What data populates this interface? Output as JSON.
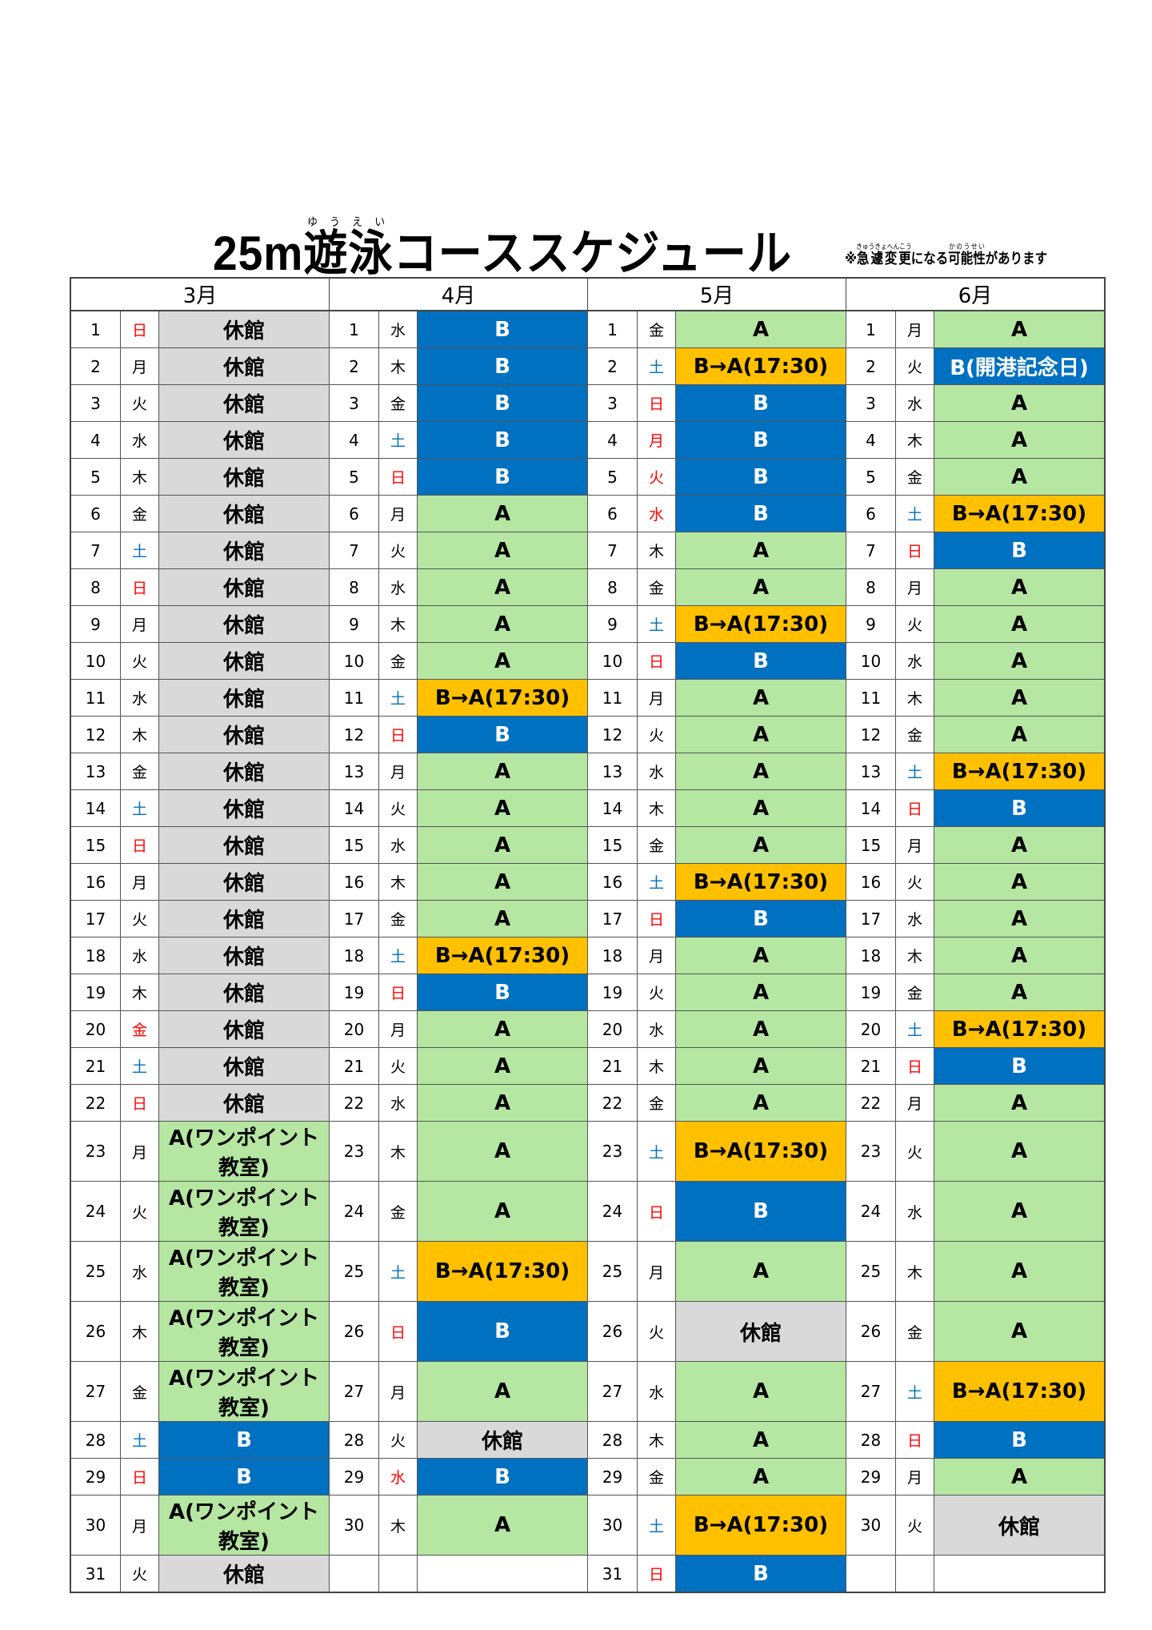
{
  "title": {
    "prefix": "25m",
    "ruby_base": "遊泳",
    "ruby_text": "ゆうえい",
    "suffix": "コーススケジュール"
  },
  "note": {
    "mark": "※",
    "r1_base": "急遽変更",
    "r1_text": "きゅうきょへんこう",
    "mid": "になる",
    "r2_base": "可能性",
    "r2_text": "かのうせい",
    "tail": "があります"
  },
  "colors": {
    "B": "#0070c0",
    "A": "#b5e6a2",
    "B_to_A": "#ffc000",
    "closed": "#d9d9d9",
    "sunday_holiday": "#ff0000",
    "saturday": "#0070c0"
  },
  "months": [
    {
      "label": "3月",
      "days": [
        {
          "d": "1",
          "w": "日",
          "v": "休館",
          "t": "X",
          "c": "red"
        },
        {
          "d": "2",
          "w": "月",
          "v": "休館",
          "t": "X",
          "c": ""
        },
        {
          "d": "3",
          "w": "火",
          "v": "休館",
          "t": "X",
          "c": ""
        },
        {
          "d": "4",
          "w": "水",
          "v": "休館",
          "t": "X",
          "c": ""
        },
        {
          "d": "5",
          "w": "木",
          "v": "休館",
          "t": "X",
          "c": ""
        },
        {
          "d": "6",
          "w": "金",
          "v": "休館",
          "t": "X",
          "c": ""
        },
        {
          "d": "7",
          "w": "土",
          "v": "休館",
          "t": "X",
          "c": "blue"
        },
        {
          "d": "8",
          "w": "日",
          "v": "休館",
          "t": "X",
          "c": "red"
        },
        {
          "d": "9",
          "w": "月",
          "v": "休館",
          "t": "X",
          "c": ""
        },
        {
          "d": "10",
          "w": "火",
          "v": "休館",
          "t": "X",
          "c": ""
        },
        {
          "d": "11",
          "w": "水",
          "v": "休館",
          "t": "X",
          "c": ""
        },
        {
          "d": "12",
          "w": "木",
          "v": "休館",
          "t": "X",
          "c": ""
        },
        {
          "d": "13",
          "w": "金",
          "v": "休館",
          "t": "X",
          "c": ""
        },
        {
          "d": "14",
          "w": "土",
          "v": "休館",
          "t": "X",
          "c": "blue"
        },
        {
          "d": "15",
          "w": "日",
          "v": "休館",
          "t": "X",
          "c": "red"
        },
        {
          "d": "16",
          "w": "月",
          "v": "休館",
          "t": "X",
          "c": ""
        },
        {
          "d": "17",
          "w": "火",
          "v": "休館",
          "t": "X",
          "c": ""
        },
        {
          "d": "18",
          "w": "水",
          "v": "休館",
          "t": "X",
          "c": ""
        },
        {
          "d": "19",
          "w": "木",
          "v": "休館",
          "t": "X",
          "c": ""
        },
        {
          "d": "20",
          "w": "金",
          "v": "休館",
          "t": "X",
          "c": "red"
        },
        {
          "d": "21",
          "w": "土",
          "v": "休館",
          "t": "X",
          "c": "blue"
        },
        {
          "d": "22",
          "w": "日",
          "v": "休館",
          "t": "X",
          "c": "red"
        },
        {
          "d": "23",
          "w": "月",
          "v": "A(ワンポイント教室)",
          "t": "AW",
          "c": ""
        },
        {
          "d": "24",
          "w": "火",
          "v": "A(ワンポイント教室)",
          "t": "AW",
          "c": ""
        },
        {
          "d": "25",
          "w": "水",
          "v": "A(ワンポイント教室)",
          "t": "AW",
          "c": ""
        },
        {
          "d": "26",
          "w": "木",
          "v": "A(ワンポイント教室)",
          "t": "AW",
          "c": ""
        },
        {
          "d": "27",
          "w": "金",
          "v": "A(ワンポイント教室)",
          "t": "AW",
          "c": ""
        },
        {
          "d": "28",
          "w": "土",
          "v": "B",
          "t": "B",
          "c": "blue"
        },
        {
          "d": "29",
          "w": "日",
          "v": "B",
          "t": "B",
          "c": "red"
        },
        {
          "d": "30",
          "w": "月",
          "v": "A(ワンポイント教室)",
          "t": "AW",
          "c": ""
        },
        {
          "d": "31",
          "w": "火",
          "v": "休館",
          "t": "X",
          "c": ""
        }
      ]
    },
    {
      "label": "4月",
      "days": [
        {
          "d": "1",
          "w": "水",
          "v": "B",
          "t": "B",
          "c": ""
        },
        {
          "d": "2",
          "w": "木",
          "v": "B",
          "t": "B",
          "c": ""
        },
        {
          "d": "3",
          "w": "金",
          "v": "B",
          "t": "B",
          "c": ""
        },
        {
          "d": "4",
          "w": "土",
          "v": "B",
          "t": "B",
          "c": "blue"
        },
        {
          "d": "5",
          "w": "日",
          "v": "B",
          "t": "B",
          "c": "red"
        },
        {
          "d": "6",
          "w": "月",
          "v": "A",
          "t": "A",
          "c": ""
        },
        {
          "d": "7",
          "w": "火",
          "v": "A",
          "t": "A",
          "c": ""
        },
        {
          "d": "8",
          "w": "水",
          "v": "A",
          "t": "A",
          "c": ""
        },
        {
          "d": "9",
          "w": "木",
          "v": "A",
          "t": "A",
          "c": ""
        },
        {
          "d": "10",
          "w": "金",
          "v": "A",
          "t": "A",
          "c": ""
        },
        {
          "d": "11",
          "w": "土",
          "v": "B→A(17:30)",
          "t": "BA",
          "c": "blue"
        },
        {
          "d": "12",
          "w": "日",
          "v": "B",
          "t": "B",
          "c": "red"
        },
        {
          "d": "13",
          "w": "月",
          "v": "A",
          "t": "A",
          "c": ""
        },
        {
          "d": "14",
          "w": "火",
          "v": "A",
          "t": "A",
          "c": ""
        },
        {
          "d": "15",
          "w": "水",
          "v": "A",
          "t": "A",
          "c": ""
        },
        {
          "d": "16",
          "w": "木",
          "v": "A",
          "t": "A",
          "c": ""
        },
        {
          "d": "17",
          "w": "金",
          "v": "A",
          "t": "A",
          "c": ""
        },
        {
          "d": "18",
          "w": "土",
          "v": "B→A(17:30)",
          "t": "BA",
          "c": "blue"
        },
        {
          "d": "19",
          "w": "日",
          "v": "B",
          "t": "B",
          "c": "red"
        },
        {
          "d": "20",
          "w": "月",
          "v": "A",
          "t": "A",
          "c": ""
        },
        {
          "d": "21",
          "w": "火",
          "v": "A",
          "t": "A",
          "c": ""
        },
        {
          "d": "22",
          "w": "水",
          "v": "A",
          "t": "A",
          "c": ""
        },
        {
          "d": "23",
          "w": "木",
          "v": "A",
          "t": "A",
          "c": ""
        },
        {
          "d": "24",
          "w": "金",
          "v": "A",
          "t": "A",
          "c": ""
        },
        {
          "d": "25",
          "w": "土",
          "v": "B→A(17:30)",
          "t": "BA",
          "c": "blue"
        },
        {
          "d": "26",
          "w": "日",
          "v": "B",
          "t": "B",
          "c": "red"
        },
        {
          "d": "27",
          "w": "月",
          "v": "A",
          "t": "A",
          "c": ""
        },
        {
          "d": "28",
          "w": "火",
          "v": "休館",
          "t": "X",
          "c": ""
        },
        {
          "d": "29",
          "w": "水",
          "v": "B",
          "t": "B",
          "c": "red"
        },
        {
          "d": "30",
          "w": "木",
          "v": "A",
          "t": "A",
          "c": ""
        },
        {
          "d": "",
          "w": "",
          "v": "",
          "t": "E",
          "c": ""
        }
      ]
    },
    {
      "label": "5月",
      "days": [
        {
          "d": "1",
          "w": "金",
          "v": "A",
          "t": "A",
          "c": ""
        },
        {
          "d": "2",
          "w": "土",
          "v": "B→A(17:30)",
          "t": "BA",
          "c": "blue"
        },
        {
          "d": "3",
          "w": "日",
          "v": "B",
          "t": "B",
          "c": "red"
        },
        {
          "d": "4",
          "w": "月",
          "v": "B",
          "t": "B",
          "c": "red"
        },
        {
          "d": "5",
          "w": "火",
          "v": "B",
          "t": "B",
          "c": "red"
        },
        {
          "d": "6",
          "w": "水",
          "v": "B",
          "t": "B",
          "c": "red"
        },
        {
          "d": "7",
          "w": "木",
          "v": "A",
          "t": "A",
          "c": ""
        },
        {
          "d": "8",
          "w": "金",
          "v": "A",
          "t": "A",
          "c": ""
        },
        {
          "d": "9",
          "w": "土",
          "v": "B→A(17:30)",
          "t": "BA",
          "c": "blue"
        },
        {
          "d": "10",
          "w": "日",
          "v": "B",
          "t": "B",
          "c": "red"
        },
        {
          "d": "11",
          "w": "月",
          "v": "A",
          "t": "A",
          "c": ""
        },
        {
          "d": "12",
          "w": "火",
          "v": "A",
          "t": "A",
          "c": ""
        },
        {
          "d": "13",
          "w": "水",
          "v": "A",
          "t": "A",
          "c": ""
        },
        {
          "d": "14",
          "w": "木",
          "v": "A",
          "t": "A",
          "c": ""
        },
        {
          "d": "15",
          "w": "金",
          "v": "A",
          "t": "A",
          "c": ""
        },
        {
          "d": "16",
          "w": "土",
          "v": "B→A(17:30)",
          "t": "BA",
          "c": "blue"
        },
        {
          "d": "17",
          "w": "日",
          "v": "B",
          "t": "B",
          "c": "red"
        },
        {
          "d": "18",
          "w": "月",
          "v": "A",
          "t": "A",
          "c": ""
        },
        {
          "d": "19",
          "w": "火",
          "v": "A",
          "t": "A",
          "c": ""
        },
        {
          "d": "20",
          "w": "水",
          "v": "A",
          "t": "A",
          "c": ""
        },
        {
          "d": "21",
          "w": "木",
          "v": "A",
          "t": "A",
          "c": ""
        },
        {
          "d": "22",
          "w": "金",
          "v": "A",
          "t": "A",
          "c": ""
        },
        {
          "d": "23",
          "w": "土",
          "v": "B→A(17:30)",
          "t": "BA",
          "c": "blue"
        },
        {
          "d": "24",
          "w": "日",
          "v": "B",
          "t": "B",
          "c": "red"
        },
        {
          "d": "25",
          "w": "月",
          "v": "A",
          "t": "A",
          "c": ""
        },
        {
          "d": "26",
          "w": "火",
          "v": "休館",
          "t": "X",
          "c": ""
        },
        {
          "d": "27",
          "w": "水",
          "v": "A",
          "t": "A",
          "c": ""
        },
        {
          "d": "28",
          "w": "木",
          "v": "A",
          "t": "A",
          "c": ""
        },
        {
          "d": "29",
          "w": "金",
          "v": "A",
          "t": "A",
          "c": ""
        },
        {
          "d": "30",
          "w": "土",
          "v": "B→A(17:30)",
          "t": "BA",
          "c": "blue"
        },
        {
          "d": "31",
          "w": "日",
          "v": "B",
          "t": "B",
          "c": "red"
        }
      ]
    },
    {
      "label": "6月",
      "days": [
        {
          "d": "1",
          "w": "月",
          "v": "A",
          "t": "A",
          "c": ""
        },
        {
          "d": "2",
          "w": "火",
          "v": "B(開港記念日)",
          "t": "BH",
          "c": ""
        },
        {
          "d": "3",
          "w": "水",
          "v": "A",
          "t": "A",
          "c": ""
        },
        {
          "d": "4",
          "w": "木",
          "v": "A",
          "t": "A",
          "c": ""
        },
        {
          "d": "5",
          "w": "金",
          "v": "A",
          "t": "A",
          "c": ""
        },
        {
          "d": "6",
          "w": "土",
          "v": "B→A(17:30)",
          "t": "BA",
          "c": "blue"
        },
        {
          "d": "7",
          "w": "日",
          "v": "B",
          "t": "B",
          "c": "red"
        },
        {
          "d": "8",
          "w": "月",
          "v": "A",
          "t": "A",
          "c": ""
        },
        {
          "d": "9",
          "w": "火",
          "v": "A",
          "t": "A",
          "c": ""
        },
        {
          "d": "10",
          "w": "水",
          "v": "A",
          "t": "A",
          "c": ""
        },
        {
          "d": "11",
          "w": "木",
          "v": "A",
          "t": "A",
          "c": ""
        },
        {
          "d": "12",
          "w": "金",
          "v": "A",
          "t": "A",
          "c": ""
        },
        {
          "d": "13",
          "w": "土",
          "v": "B→A(17:30)",
          "t": "BA",
          "c": "blue"
        },
        {
          "d": "14",
          "w": "日",
          "v": "B",
          "t": "B",
          "c": "red"
        },
        {
          "d": "15",
          "w": "月",
          "v": "A",
          "t": "A",
          "c": ""
        },
        {
          "d": "16",
          "w": "火",
          "v": "A",
          "t": "A",
          "c": ""
        },
        {
          "d": "17",
          "w": "水",
          "v": "A",
          "t": "A",
          "c": ""
        },
        {
          "d": "18",
          "w": "木",
          "v": "A",
          "t": "A",
          "c": ""
        },
        {
          "d": "19",
          "w": "金",
          "v": "A",
          "t": "A",
          "c": ""
        },
        {
          "d": "20",
          "w": "土",
          "v": "B→A(17:30)",
          "t": "BA",
          "c": "blue"
        },
        {
          "d": "21",
          "w": "日",
          "v": "B",
          "t": "B",
          "c": "red"
        },
        {
          "d": "22",
          "w": "月",
          "v": "A",
          "t": "A",
          "c": ""
        },
        {
          "d": "23",
          "w": "火",
          "v": "A",
          "t": "A",
          "c": ""
        },
        {
          "d": "24",
          "w": "水",
          "v": "A",
          "t": "A",
          "c": ""
        },
        {
          "d": "25",
          "w": "木",
          "v": "A",
          "t": "A",
          "c": ""
        },
        {
          "d": "26",
          "w": "金",
          "v": "A",
          "t": "A",
          "c": ""
        },
        {
          "d": "27",
          "w": "土",
          "v": "B→A(17:30)",
          "t": "BA",
          "c": "blue"
        },
        {
          "d": "28",
          "w": "日",
          "v": "B",
          "t": "B",
          "c": "red"
        },
        {
          "d": "29",
          "w": "月",
          "v": "A",
          "t": "A",
          "c": ""
        },
        {
          "d": "30",
          "w": "火",
          "v": "休館",
          "t": "X",
          "c": ""
        },
        {
          "d": "",
          "w": "",
          "v": "",
          "t": "E",
          "c": ""
        }
      ]
    }
  ]
}
